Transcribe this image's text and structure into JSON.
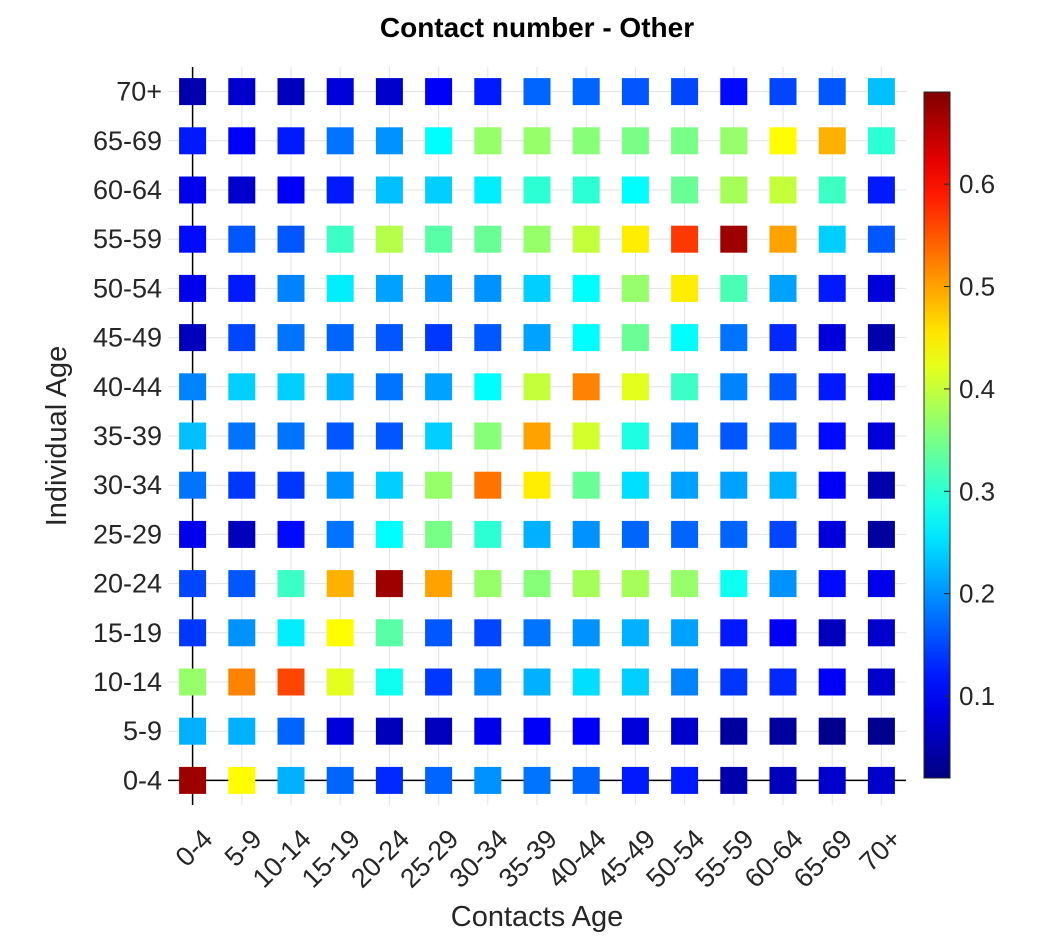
{
  "chart_data": {
    "type": "heatmap",
    "title": "Contact number - Other",
    "xlabel": "Contacts Age",
    "ylabel": "Individual Age",
    "x_categories": [
      "0-4",
      "5-9",
      "10-14",
      "15-19",
      "20-24",
      "25-29",
      "30-34",
      "35-39",
      "40-44",
      "45-49",
      "50-54",
      "55-59",
      "60-64",
      "65-69",
      "70+"
    ],
    "y_categories": [
      "0-4",
      "5-9",
      "10-14",
      "15-19",
      "20-24",
      "25-29",
      "30-34",
      "35-39",
      "40-44",
      "45-49",
      "50-54",
      "55-59",
      "60-64",
      "65-69",
      "70+"
    ],
    "colorscale": "jet",
    "color_range": [
      0.02,
      0.69
    ],
    "colorbar_ticks": [
      0.1,
      0.2,
      0.3,
      0.4,
      0.5,
      0.6
    ],
    "grid": true,
    "values": [
      [
        0.67,
        0.44,
        0.22,
        0.17,
        0.13,
        0.17,
        0.2,
        0.18,
        0.17,
        0.12,
        0.12,
        0.05,
        0.06,
        0.07,
        0.07
      ],
      [
        0.22,
        0.22,
        0.17,
        0.08,
        0.06,
        0.06,
        0.09,
        0.1,
        0.1,
        0.08,
        0.07,
        0.04,
        0.04,
        0.03,
        0.03
      ],
      [
        0.37,
        0.52,
        0.56,
        0.42,
        0.28,
        0.14,
        0.19,
        0.22,
        0.25,
        0.24,
        0.19,
        0.14,
        0.13,
        0.1,
        0.07
      ],
      [
        0.14,
        0.2,
        0.26,
        0.44,
        0.33,
        0.16,
        0.15,
        0.18,
        0.2,
        0.22,
        0.21,
        0.12,
        0.1,
        0.06,
        0.07
      ],
      [
        0.15,
        0.16,
        0.31,
        0.49,
        0.67,
        0.5,
        0.37,
        0.36,
        0.38,
        0.38,
        0.37,
        0.28,
        0.2,
        0.11,
        0.09
      ],
      [
        0.09,
        0.06,
        0.11,
        0.18,
        0.27,
        0.35,
        0.3,
        0.22,
        0.2,
        0.17,
        0.17,
        0.17,
        0.15,
        0.08,
        0.04
      ],
      [
        0.18,
        0.14,
        0.14,
        0.2,
        0.24,
        0.37,
        0.53,
        0.45,
        0.34,
        0.25,
        0.21,
        0.21,
        0.22,
        0.1,
        0.05
      ],
      [
        0.23,
        0.18,
        0.18,
        0.16,
        0.16,
        0.24,
        0.36,
        0.5,
        0.41,
        0.29,
        0.19,
        0.16,
        0.16,
        0.11,
        0.08
      ],
      [
        0.19,
        0.24,
        0.24,
        0.22,
        0.18,
        0.21,
        0.27,
        0.4,
        0.52,
        0.42,
        0.31,
        0.19,
        0.16,
        0.12,
        0.09
      ],
      [
        0.06,
        0.15,
        0.18,
        0.17,
        0.16,
        0.14,
        0.16,
        0.21,
        0.27,
        0.34,
        0.27,
        0.18,
        0.13,
        0.08,
        0.05
      ],
      [
        0.09,
        0.12,
        0.19,
        0.26,
        0.21,
        0.2,
        0.2,
        0.24,
        0.27,
        0.37,
        0.45,
        0.32,
        0.21,
        0.12,
        0.08
      ],
      [
        0.11,
        0.16,
        0.16,
        0.31,
        0.39,
        0.33,
        0.34,
        0.37,
        0.4,
        0.45,
        0.57,
        0.67,
        0.5,
        0.24,
        0.16
      ],
      [
        0.09,
        0.07,
        0.1,
        0.12,
        0.23,
        0.24,
        0.26,
        0.3,
        0.3,
        0.27,
        0.34,
        0.38,
        0.4,
        0.31,
        0.12
      ],
      [
        0.12,
        0.1,
        0.12,
        0.18,
        0.2,
        0.27,
        0.37,
        0.37,
        0.36,
        0.35,
        0.35,
        0.37,
        0.44,
        0.49,
        0.3
      ],
      [
        0.05,
        0.07,
        0.06,
        0.08,
        0.07,
        0.1,
        0.12,
        0.17,
        0.17,
        0.16,
        0.15,
        0.11,
        0.15,
        0.16,
        0.23
      ]
    ]
  }
}
